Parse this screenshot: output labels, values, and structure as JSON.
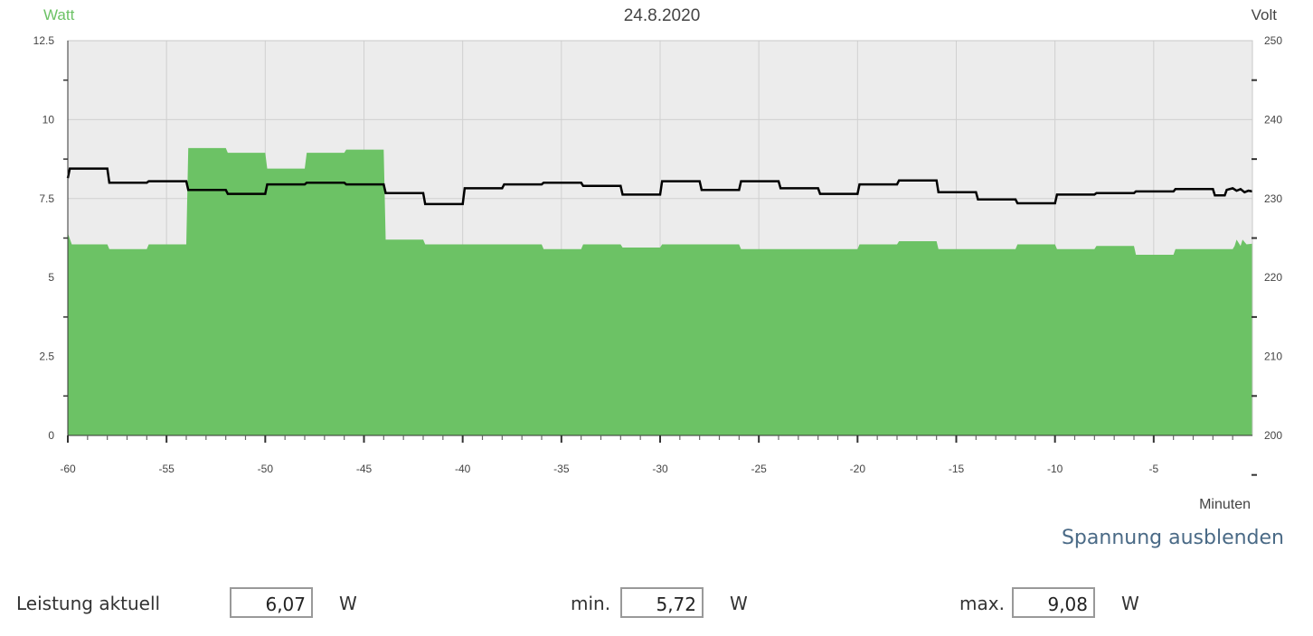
{
  "chart_data": {
    "type": "area",
    "title": "24.8.2020",
    "xlabel": "Minuten",
    "ylabel": "Watt",
    "y2label": "Volt",
    "xlim": [
      -60,
      0
    ],
    "ylim": [
      0,
      12.5
    ],
    "y2lim": [
      200,
      250
    ],
    "x_ticks": [
      -60,
      -55,
      -50,
      -45,
      -40,
      -35,
      -30,
      -25,
      -20,
      -15,
      -10,
      -5
    ],
    "y_ticks": [
      "0",
      "2.5",
      "5",
      "7.5",
      "10",
      "12.5"
    ],
    "y2_ticks": [
      "200",
      "210",
      "220",
      "230",
      "240",
      "250"
    ],
    "grid": true,
    "series": [
      {
        "axis": "left",
        "style": "area",
        "color": "#6cc265",
        "points": [
          [
            -60,
            6.4
          ],
          [
            -59.8,
            6.05
          ],
          [
            -58,
            6.05
          ],
          [
            -57.9,
            5.9
          ],
          [
            -56,
            5.9
          ],
          [
            -55.9,
            6.05
          ],
          [
            -54,
            6.05
          ],
          [
            -53.9,
            9.1
          ],
          [
            -52,
            9.1
          ],
          [
            -51.9,
            8.95
          ],
          [
            -50,
            8.95
          ],
          [
            -49.9,
            8.45
          ],
          [
            -48,
            8.45
          ],
          [
            -47.9,
            8.95
          ],
          [
            -46,
            8.95
          ],
          [
            -45.9,
            9.05
          ],
          [
            -44,
            9.05
          ],
          [
            -43.9,
            6.2
          ],
          [
            -42,
            6.2
          ],
          [
            -41.9,
            6.05
          ],
          [
            -36,
            6.05
          ],
          [
            -35.9,
            5.9
          ],
          [
            -34,
            5.9
          ],
          [
            -33.9,
            6.05
          ],
          [
            -32,
            6.05
          ],
          [
            -31.9,
            5.95
          ],
          [
            -30,
            5.95
          ],
          [
            -29.9,
            6.05
          ],
          [
            -26,
            6.05
          ],
          [
            -25.9,
            5.9
          ],
          [
            -20,
            5.9
          ],
          [
            -19.9,
            6.05
          ],
          [
            -18,
            6.05
          ],
          [
            -17.9,
            6.15
          ],
          [
            -16,
            6.15
          ],
          [
            -15.9,
            5.9
          ],
          [
            -12,
            5.9
          ],
          [
            -11.9,
            6.05
          ],
          [
            -10,
            6.05
          ],
          [
            -9.9,
            5.9
          ],
          [
            -8,
            5.9
          ],
          [
            -7.9,
            6.0
          ],
          [
            -6,
            6.0
          ],
          [
            -5.9,
            5.72
          ],
          [
            -4,
            5.72
          ],
          [
            -3.9,
            5.9
          ],
          [
            -1,
            5.9
          ],
          [
            -0.9,
            6.0
          ],
          [
            -0.8,
            6.2
          ],
          [
            -0.6,
            6.0
          ],
          [
            -0.5,
            6.2
          ],
          [
            -0.3,
            6.05
          ],
          [
            0,
            6.07
          ]
        ]
      },
      {
        "axis": "right",
        "style": "step-line",
        "color": "#000000",
        "points": [
          [
            -60,
            232.6
          ],
          [
            -59.9,
            233.8
          ],
          [
            -58,
            233.8
          ],
          [
            -57.9,
            232.0
          ],
          [
            -56,
            232.0
          ],
          [
            -55.9,
            232.2
          ],
          [
            -54,
            232.2
          ],
          [
            -53.9,
            231.1
          ],
          [
            -52,
            231.1
          ],
          [
            -51.9,
            230.6
          ],
          [
            -50,
            230.6
          ],
          [
            -49.9,
            231.8
          ],
          [
            -48,
            231.8
          ],
          [
            -47.9,
            232.0
          ],
          [
            -46,
            232.0
          ],
          [
            -45.9,
            231.8
          ],
          [
            -44,
            231.8
          ],
          [
            -43.9,
            230.7
          ],
          [
            -42,
            230.7
          ],
          [
            -41.9,
            229.3
          ],
          [
            -40,
            229.3
          ],
          [
            -39.9,
            231.3
          ],
          [
            -38,
            231.3
          ],
          [
            -37.9,
            231.8
          ],
          [
            -36,
            231.8
          ],
          [
            -35.9,
            232.0
          ],
          [
            -34,
            232.0
          ],
          [
            -33.9,
            231.6
          ],
          [
            -32,
            231.6
          ],
          [
            -31.9,
            230.5
          ],
          [
            -30,
            230.5
          ],
          [
            -29.9,
            232.2
          ],
          [
            -28,
            232.2
          ],
          [
            -27.9,
            231.1
          ],
          [
            -26,
            231.1
          ],
          [
            -25.9,
            232.2
          ],
          [
            -24,
            232.2
          ],
          [
            -23.9,
            231.3
          ],
          [
            -22,
            231.3
          ],
          [
            -21.9,
            230.6
          ],
          [
            -20,
            230.6
          ],
          [
            -19.9,
            231.8
          ],
          [
            -18,
            231.8
          ],
          [
            -17.9,
            232.3
          ],
          [
            -16,
            232.3
          ],
          [
            -15.9,
            230.8
          ],
          [
            -14,
            230.8
          ],
          [
            -13.9,
            229.9
          ],
          [
            -12,
            229.9
          ],
          [
            -11.9,
            229.4
          ],
          [
            -10,
            229.4
          ],
          [
            -9.9,
            230.5
          ],
          [
            -8,
            230.5
          ],
          [
            -7.9,
            230.7
          ],
          [
            -6,
            230.7
          ],
          [
            -5.9,
            230.9
          ],
          [
            -4,
            230.9
          ],
          [
            -3.9,
            231.2
          ],
          [
            -2,
            231.2
          ],
          [
            -1.9,
            230.4
          ],
          [
            -1.4,
            230.4
          ],
          [
            -1.3,
            231.1
          ],
          [
            -1.0,
            231.3
          ],
          [
            -0.8,
            231.0
          ],
          [
            -0.6,
            231.2
          ],
          [
            -0.4,
            230.8
          ],
          [
            -0.2,
            231.0
          ],
          [
            0,
            230.9
          ]
        ]
      }
    ]
  },
  "toggle_label": "Spannung ausblenden",
  "stats": {
    "current_label": "Leistung aktuell",
    "current_value": "6,07",
    "current_unit": "W",
    "min_label": "min.",
    "min_value": "5,72",
    "min_unit": "W",
    "max_label": "max.",
    "max_value": "9,08",
    "max_unit": "W"
  }
}
